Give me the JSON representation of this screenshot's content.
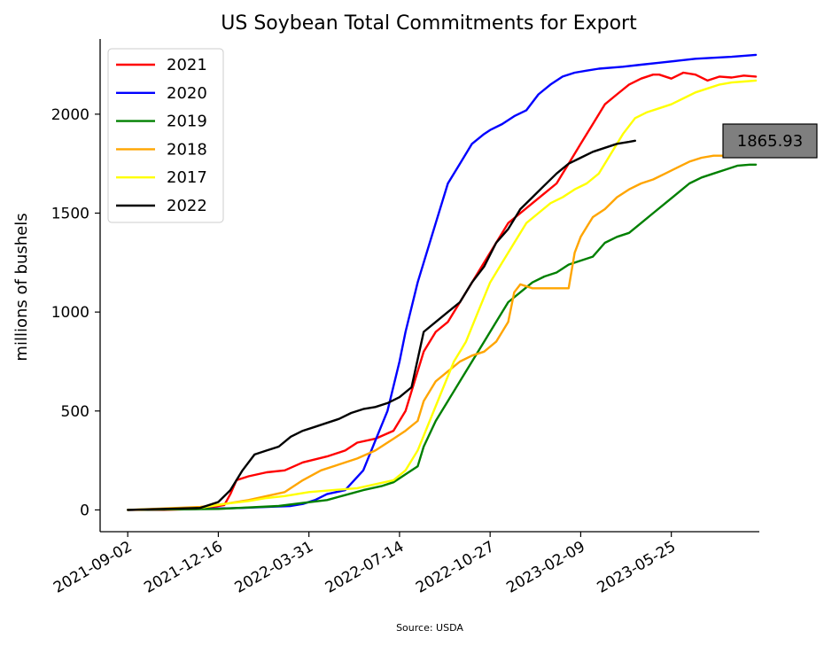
{
  "chart_data": {
    "type": "line",
    "title": "US Soybean Total Commitments for Export",
    "ylabel": "millions of bushels",
    "xlabel": "",
    "source": "Source: USDA",
    "x_axis": {
      "type": "date",
      "range": [
        "2021-08-01",
        "2023-09-04"
      ],
      "ticks": [
        "2021-09-02",
        "2021-12-16",
        "2022-03-31",
        "2022-07-14",
        "2022-10-27",
        "2023-02-09",
        "2023-05-25"
      ]
    },
    "y_axis": {
      "range": [
        -110,
        2380
      ],
      "ticks": [
        0,
        500,
        1000,
        1500,
        2000
      ],
      "tick_labels": [
        "0",
        "500",
        "1000",
        "1500",
        "2000"
      ]
    },
    "grid": false,
    "legend_position": "top-left",
    "callout": {
      "label": "1865.93",
      "value": 1865.93,
      "series": "2022",
      "fill": "#7f7f7f"
    },
    "series": [
      {
        "name": "2021",
        "color": "#ff0000",
        "x": [
          "2021-09-02",
          "2021-10-14",
          "2021-11-25",
          "2021-12-23",
          "2021-12-30",
          "2022-01-06",
          "2022-01-20",
          "2022-02-10",
          "2022-03-03",
          "2022-03-24",
          "2022-04-21",
          "2022-05-12",
          "2022-05-26",
          "2022-06-16",
          "2022-07-07",
          "2022-07-21",
          "2022-07-28",
          "2022-08-11",
          "2022-08-18",
          "2022-08-25",
          "2022-09-08",
          "2022-09-22",
          "2022-10-06",
          "2022-10-20",
          "2022-11-03",
          "2022-11-17",
          "2022-12-01",
          "2022-12-15",
          "2022-12-29",
          "2023-01-12",
          "2023-01-26",
          "2023-02-09",
          "2023-02-23",
          "2023-03-09",
          "2023-03-23",
          "2023-04-06",
          "2023-04-20",
          "2023-05-04",
          "2023-05-11",
          "2023-05-25",
          "2023-06-08",
          "2023-06-22",
          "2023-07-06",
          "2023-07-20",
          "2023-08-03",
          "2023-08-17",
          "2023-08-31"
        ],
        "y": [
          0,
          0,
          5,
          25,
          80,
          150,
          170,
          190,
          200,
          240,
          270,
          300,
          340,
          360,
          400,
          500,
          600,
          800,
          850,
          900,
          950,
          1050,
          1150,
          1250,
          1350,
          1450,
          1500,
          1550,
          1600,
          1650,
          1750,
          1850,
          1950,
          2050,
          2100,
          2150,
          2180,
          2200,
          2200,
          2180,
          2210,
          2200,
          2170,
          2190,
          2185,
          2195,
          2190
        ]
      },
      {
        "name": "2020",
        "color": "#0000ff",
        "x": [
          "2021-09-02",
          "2021-11-25",
          "2022-01-13",
          "2022-02-10",
          "2022-03-10",
          "2022-03-24",
          "2022-04-07",
          "2022-04-21",
          "2022-05-12",
          "2022-06-02",
          "2022-06-16",
          "2022-06-30",
          "2022-07-14",
          "2022-07-21",
          "2022-08-04",
          "2022-08-11",
          "2022-08-25",
          "2022-09-08",
          "2022-09-22",
          "2022-10-06",
          "2022-10-20",
          "2022-10-27",
          "2022-11-10",
          "2022-11-24",
          "2022-12-08",
          "2022-12-22",
          "2023-01-05",
          "2023-01-19",
          "2023-02-02",
          "2023-02-16",
          "2023-03-02",
          "2023-03-30",
          "2023-04-20",
          "2023-05-11",
          "2023-06-01",
          "2023-06-22",
          "2023-07-13",
          "2023-08-03",
          "2023-08-31"
        ],
        "y": [
          0,
          5,
          10,
          15,
          20,
          30,
          50,
          80,
          100,
          200,
          350,
          500,
          750,
          900,
          1150,
          1250,
          1450,
          1650,
          1750,
          1850,
          1900,
          1920,
          1950,
          1990,
          2020,
          2100,
          2150,
          2190,
          2210,
          2220,
          2230,
          2240,
          2250,
          2260,
          2270,
          2280,
          2285,
          2290,
          2300
        ]
      },
      {
        "name": "2019",
        "color": "#008000",
        "x": [
          "2021-09-02",
          "2021-12-16",
          "2022-02-24",
          "2022-03-24",
          "2022-04-21",
          "2022-05-12",
          "2022-06-02",
          "2022-06-23",
          "2022-07-07",
          "2022-07-21",
          "2022-08-04",
          "2022-08-11",
          "2022-08-25",
          "2022-09-08",
          "2022-09-22",
          "2022-10-06",
          "2022-10-20",
          "2022-11-03",
          "2022-11-17",
          "2022-12-01",
          "2022-12-15",
          "2022-12-29",
          "2023-01-12",
          "2023-01-26",
          "2023-02-09",
          "2023-02-23",
          "2023-03-09",
          "2023-03-23",
          "2023-04-06",
          "2023-04-20",
          "2023-05-04",
          "2023-05-18",
          "2023-06-01",
          "2023-06-15",
          "2023-06-29",
          "2023-07-13",
          "2023-07-27",
          "2023-08-10",
          "2023-08-24",
          "2023-08-31"
        ],
        "y": [
          0,
          5,
          20,
          35,
          50,
          75,
          100,
          120,
          140,
          180,
          220,
          320,
          450,
          550,
          650,
          750,
          850,
          950,
          1050,
          1100,
          1150,
          1180,
          1200,
          1240,
          1260,
          1280,
          1350,
          1380,
          1400,
          1450,
          1500,
          1550,
          1600,
          1650,
          1680,
          1700,
          1720,
          1740,
          1745,
          1745
        ]
      },
      {
        "name": "2018",
        "color": "#ffa500",
        "x": [
          "2021-09-02",
          "2021-11-25",
          "2021-12-23",
          "2022-01-20",
          "2022-02-10",
          "2022-03-03",
          "2022-03-24",
          "2022-04-14",
          "2022-05-05",
          "2022-05-26",
          "2022-06-16",
          "2022-07-07",
          "2022-07-21",
          "2022-08-04",
          "2022-08-11",
          "2022-08-25",
          "2022-09-08",
          "2022-09-22",
          "2022-10-06",
          "2022-10-20",
          "2022-11-03",
          "2022-11-17",
          "2022-11-24",
          "2022-12-01",
          "2022-12-15",
          "2022-12-29",
          "2023-01-12",
          "2023-01-26",
          "2023-02-02",
          "2023-02-09",
          "2023-02-16",
          "2023-02-23",
          "2023-03-09",
          "2023-03-23",
          "2023-04-06",
          "2023-04-20",
          "2023-05-04",
          "2023-05-18",
          "2023-06-01",
          "2023-06-15",
          "2023-06-29",
          "2023-07-13",
          "2023-07-27",
          "2023-08-10",
          "2023-08-31"
        ],
        "y": [
          0,
          15,
          30,
          50,
          70,
          90,
          150,
          200,
          230,
          260,
          300,
          360,
          400,
          450,
          550,
          650,
          700,
          750,
          780,
          800,
          850,
          950,
          1100,
          1140,
          1120,
          1120,
          1120,
          1120,
          1300,
          1380,
          1430,
          1480,
          1520,
          1580,
          1620,
          1650,
          1670,
          1700,
          1730,
          1760,
          1780,
          1790,
          1790,
          1790,
          1790
        ]
      },
      {
        "name": "2017",
        "color": "#ffff00",
        "x": [
          "2021-09-02",
          "2021-11-25",
          "2021-12-23",
          "2022-01-20",
          "2022-02-10",
          "2022-03-03",
          "2022-03-31",
          "2022-04-28",
          "2022-05-26",
          "2022-06-16",
          "2022-07-07",
          "2022-07-21",
          "2022-08-04",
          "2022-08-18",
          "2022-09-01",
          "2022-09-15",
          "2022-09-29",
          "2022-10-13",
          "2022-10-27",
          "2022-11-10",
          "2022-11-24",
          "2022-12-08",
          "2022-12-22",
          "2023-01-05",
          "2023-01-19",
          "2023-02-02",
          "2023-02-16",
          "2023-03-02",
          "2023-03-16",
          "2023-03-30",
          "2023-04-13",
          "2023-04-27",
          "2023-05-11",
          "2023-05-25",
          "2023-06-08",
          "2023-06-22",
          "2023-07-06",
          "2023-07-20",
          "2023-08-03",
          "2023-08-17",
          "2023-08-31"
        ],
        "y": [
          0,
          10,
          30,
          45,
          60,
          70,
          90,
          100,
          110,
          130,
          150,
          200,
          300,
          450,
          600,
          750,
          850,
          1000,
          1150,
          1250,
          1350,
          1450,
          1500,
          1550,
          1580,
          1620,
          1650,
          1700,
          1800,
          1900,
          1980,
          2010,
          2030,
          2050,
          2080,
          2110,
          2130,
          2150,
          2160,
          2165,
          2170
        ]
      },
      {
        "name": "2022",
        "color": "#000000",
        "x": [
          "2021-09-02",
          "2021-11-25",
          "2021-12-16",
          "2021-12-30",
          "2022-01-13",
          "2022-01-27",
          "2022-02-10",
          "2022-02-24",
          "2022-03-10",
          "2022-03-24",
          "2022-04-07",
          "2022-04-21",
          "2022-05-05",
          "2022-05-19",
          "2022-06-02",
          "2022-06-16",
          "2022-06-30",
          "2022-07-14",
          "2022-07-28",
          "2022-08-11",
          "2022-08-25",
          "2022-09-08",
          "2022-09-22",
          "2022-10-06",
          "2022-10-20",
          "2022-11-03",
          "2022-11-17",
          "2022-12-01",
          "2022-12-15",
          "2022-12-29",
          "2023-01-12",
          "2023-01-26",
          "2023-02-09",
          "2023-02-23",
          "2023-03-09",
          "2023-03-23",
          "2023-04-06",
          "2023-04-13"
        ],
        "y": [
          0,
          10,
          40,
          100,
          200,
          280,
          300,
          320,
          370,
          400,
          420,
          440,
          460,
          490,
          510,
          520,
          540,
          570,
          620,
          900,
          950,
          1000,
          1050,
          1150,
          1230,
          1350,
          1420,
          1520,
          1580,
          1640,
          1700,
          1750,
          1780,
          1810,
          1830,
          1850,
          1860,
          1865.93
        ]
      }
    ]
  }
}
